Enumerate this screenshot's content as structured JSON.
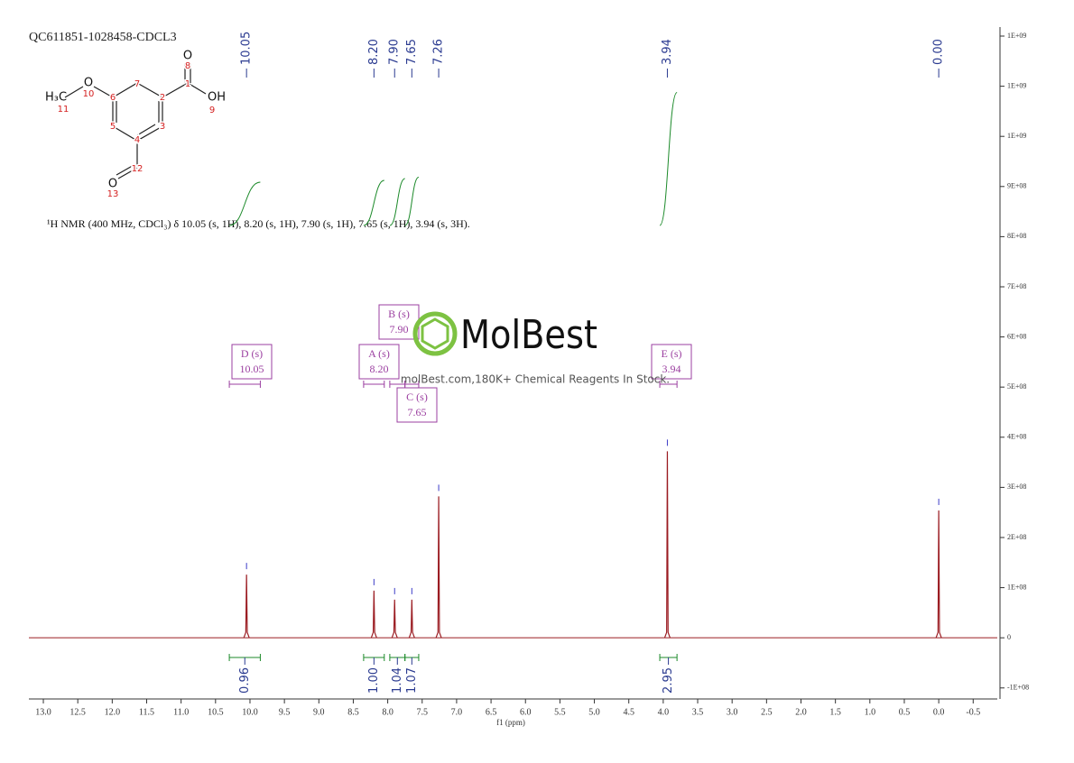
{
  "chart_data": {
    "type": "nmr",
    "title": "QC611851-1028458-CDCL3",
    "description": "¹H NMR (400 MHz, CDCl₃) δ 10.05 (s, 1H), 8.20 (s, 1H), 7.90 (s, 1H), 7.65 (s, 1H), 3.94 (s, 3H).",
    "x_label": "f1 (ppm)",
    "watermark": {
      "brand": "MolBest",
      "tagline": "molBest.com,180K+ Chemical Reagents In Stock."
    },
    "structure": {
      "atom_symbols": [
        "O",
        "OH",
        "O",
        "O",
        "H₃C"
      ],
      "atom_numbers": [
        "1",
        "2",
        "3",
        "4",
        "5",
        "6",
        "7",
        "8",
        "9",
        "10",
        "11",
        "12",
        "13"
      ]
    },
    "xlim": [
      13.21,
      -0.85
    ],
    "xticks": [
      {
        "value": 13,
        "label": "13.0"
      },
      12.5,
      {
        "value": 12,
        "label": "12.0"
      },
      11.5,
      {
        "value": 11,
        "label": "11.0"
      },
      10.5,
      {
        "value": 10,
        "label": "10.0"
      },
      9.5,
      {
        "value": 9,
        "label": "9.0"
      },
      8.5,
      {
        "value": 8,
        "label": "8.0"
      },
      7.5,
      {
        "value": 7,
        "label": "7.0"
      },
      6.5,
      {
        "value": 6,
        "label": "6.0"
      },
      5.5,
      {
        "value": 5,
        "label": "5.0"
      },
      4.5,
      {
        "value": 4,
        "label": "4.0"
      },
      3.5,
      {
        "value": 3,
        "label": "3.0"
      },
      2.5,
      {
        "value": 2,
        "label": "2.0"
      },
      1.5,
      {
        "value": 1,
        "label": "1.0"
      },
      0.5,
      {
        "value": 0,
        "label": "0.0"
      },
      -0.5
    ],
    "ylim": [
      1218000000,
      -122000000
    ],
    "yticks": [
      {
        "value": 1200000000,
        "label": "1E+09"
      },
      {
        "value": 1100000000,
        "label": "1E+09"
      },
      {
        "value": 1000000000,
        "label": "1E+09"
      },
      {
        "value": 900000000,
        "label": "9E+08"
      },
      {
        "value": 800000000,
        "label": "8E+08"
      },
      {
        "value": 700000000,
        "label": "7E+08"
      },
      {
        "value": 600000000,
        "label": "6E+08"
      },
      {
        "value": 500000000,
        "label": "5E+08"
      },
      {
        "value": 400000000,
        "label": "4E+08"
      },
      {
        "value": 300000000,
        "label": "3E+08"
      },
      {
        "value": 200000000,
        "label": "2E+08"
      },
      {
        "value": 100000000,
        "label": "1E+08"
      },
      0,
      {
        "value": -100000000,
        "label": "-1E+08"
      }
    ],
    "color": "#9b1c22",
    "peaks": [
      {
        "x": 10.05,
        "y": 126000000
      },
      {
        "x": {
          "value": 8.2,
          "label": "8.20"
        },
        "y": 94000000
      },
      {
        "x": {
          "value": 7.9,
          "label": "7.90"
        },
        "y": 76000000
      },
      {
        "x": 7.65,
        "y": 76000000
      },
      {
        "x": 7.26,
        "y": 282000000
      },
      {
        "x": 3.94,
        "y": 372000000
      },
      {
        "x": {
          "value": 0,
          "label": "0.00"
        },
        "y": 254000000
      }
    ],
    "integrals": [
      {
        "from": 10.3,
        "to": 9.85,
        "value": 0.96
      },
      {
        "from": 8.35,
        "to": 8.05,
        "value": {
          "value": 1,
          "label": "1.00"
        }
      },
      {
        "from": 7.97,
        "to": 7.75,
        "value": 1.04
      },
      {
        "from": 7.75,
        "to": 7.55,
        "value": 1.07
      },
      {
        "from": 4.05,
        "to": 3.8,
        "value": 2.95
      }
    ],
    "multiplets": [
      {
        "name": "D (s)",
        "shift": 10.05
      },
      {
        "name": "A (s)",
        "shift": {
          "value": 8.2,
          "label": "8.20"
        }
      },
      {
        "name": "B (s)",
        "shift": {
          "value": 7.9,
          "label": "7.90"
        }
      },
      {
        "name": "C (s)",
        "shift": 7.65
      },
      {
        "name": "E (s)",
        "shift": 3.94
      }
    ]
  }
}
